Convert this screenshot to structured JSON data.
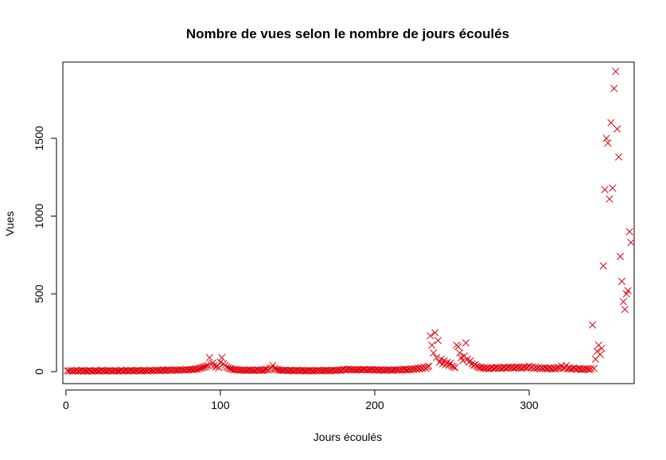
{
  "chart_data": {
    "type": "scatter",
    "title": "Nombre de vues selon le nombre de jours écoulés",
    "xlabel": "Jours écoulés",
    "ylabel": "Vues",
    "xlim": [
      -2,
      368
    ],
    "ylim": [
      -77,
      1990
    ],
    "xticks": [
      0,
      100,
      200,
      300
    ],
    "yticks": [
      0,
      500,
      1000,
      1500
    ],
    "marker": "x",
    "color": "#E0000A",
    "grid": false,
    "legend": "none",
    "points": [
      [
        1,
        5
      ],
      [
        2,
        3
      ],
      [
        3,
        8
      ],
      [
        4,
        2
      ],
      [
        5,
        6
      ],
      [
        6,
        4
      ],
      [
        7,
        9
      ],
      [
        8,
        3
      ],
      [
        9,
        5
      ],
      [
        10,
        7
      ],
      [
        11,
        2
      ],
      [
        12,
        6
      ],
      [
        13,
        4
      ],
      [
        14,
        3
      ],
      [
        15,
        8
      ],
      [
        16,
        5
      ],
      [
        17,
        2
      ],
      [
        18,
        6
      ],
      [
        19,
        4
      ],
      [
        20,
        7
      ],
      [
        21,
        3
      ],
      [
        22,
        5
      ],
      [
        23,
        9
      ],
      [
        24,
        4
      ],
      [
        25,
        6
      ],
      [
        26,
        3
      ],
      [
        27,
        5
      ],
      [
        28,
        8
      ],
      [
        29,
        4
      ],
      [
        30,
        6
      ],
      [
        31,
        3
      ],
      [
        32,
        7
      ],
      [
        33,
        5
      ],
      [
        34,
        4
      ],
      [
        35,
        6
      ],
      [
        36,
        9
      ],
      [
        37,
        3
      ],
      [
        38,
        5
      ],
      [
        39,
        7
      ],
      [
        40,
        4
      ],
      [
        41,
        6
      ],
      [
        42,
        8
      ],
      [
        43,
        5
      ],
      [
        44,
        3
      ],
      [
        45,
        7
      ],
      [
        46,
        5
      ],
      [
        47,
        9
      ],
      [
        48,
        4
      ],
      [
        49,
        6
      ],
      [
        50,
        8
      ],
      [
        51,
        5
      ],
      [
        52,
        7
      ],
      [
        53,
        4
      ],
      [
        54,
        9
      ],
      [
        55,
        6
      ],
      [
        56,
        8
      ],
      [
        57,
        5
      ],
      [
        58,
        10
      ],
      [
        59,
        7
      ],
      [
        60,
        9
      ],
      [
        61,
        6
      ],
      [
        62,
        8
      ],
      [
        63,
        11
      ],
      [
        64,
        7
      ],
      [
        65,
        9
      ],
      [
        66,
        12
      ],
      [
        67,
        8
      ],
      [
        68,
        10
      ],
      [
        69,
        7
      ],
      [
        70,
        12
      ],
      [
        71,
        9
      ],
      [
        72,
        11
      ],
      [
        73,
        8
      ],
      [
        74,
        13
      ],
      [
        75,
        10
      ],
      [
        76,
        12
      ],
      [
        77,
        9
      ],
      [
        78,
        14
      ],
      [
        79,
        11
      ],
      [
        80,
        13
      ],
      [
        81,
        15
      ],
      [
        82,
        12
      ],
      [
        83,
        14
      ],
      [
        84,
        18
      ],
      [
        85,
        15
      ],
      [
        86,
        20
      ],
      [
        87,
        22
      ],
      [
        88,
        25
      ],
      [
        89,
        28
      ],
      [
        90,
        30
      ],
      [
        91,
        35
      ],
      [
        92,
        40
      ],
      [
        93,
        90
      ],
      [
        94,
        45
      ],
      [
        95,
        55
      ],
      [
        96,
        40
      ],
      [
        97,
        30
      ],
      [
        98,
        35
      ],
      [
        99,
        25
      ],
      [
        100,
        60
      ],
      [
        101,
        90
      ],
      [
        102,
        50
      ],
      [
        103,
        40
      ],
      [
        104,
        30
      ],
      [
        105,
        25
      ],
      [
        106,
        20
      ],
      [
        107,
        18
      ],
      [
        108,
        15
      ],
      [
        109,
        12
      ],
      [
        110,
        14
      ],
      [
        111,
        10
      ],
      [
        112,
        12
      ],
      [
        113,
        9
      ],
      [
        114,
        11
      ],
      [
        115,
        8
      ],
      [
        116,
        10
      ],
      [
        117,
        7
      ],
      [
        118,
        9
      ],
      [
        119,
        11
      ],
      [
        120,
        8
      ],
      [
        121,
        10
      ],
      [
        122,
        7
      ],
      [
        123,
        9
      ],
      [
        124,
        12
      ],
      [
        125,
        8
      ],
      [
        126,
        10
      ],
      [
        127,
        7
      ],
      [
        128,
        9
      ],
      [
        129,
        12
      ],
      [
        130,
        15
      ],
      [
        131,
        10
      ],
      [
        132,
        18
      ],
      [
        133,
        25
      ],
      [
        134,
        40
      ],
      [
        135,
        20
      ],
      [
        136,
        15
      ],
      [
        137,
        12
      ],
      [
        138,
        10
      ],
      [
        139,
        8
      ],
      [
        140,
        9
      ],
      [
        141,
        7
      ],
      [
        142,
        10
      ],
      [
        143,
        8
      ],
      [
        144,
        6
      ],
      [
        145,
        9
      ],
      [
        146,
        7
      ],
      [
        147,
        5
      ],
      [
        148,
        8
      ],
      [
        149,
        6
      ],
      [
        150,
        9
      ],
      [
        151,
        7
      ],
      [
        152,
        5
      ],
      [
        153,
        8
      ],
      [
        154,
        6
      ],
      [
        155,
        4
      ],
      [
        156,
        7
      ],
      [
        157,
        5
      ],
      [
        158,
        8
      ],
      [
        159,
        6
      ],
      [
        160,
        4
      ],
      [
        161,
        7
      ],
      [
        162,
        5
      ],
      [
        163,
        9
      ],
      [
        164,
        6
      ],
      [
        165,
        8
      ],
      [
        166,
        5
      ],
      [
        167,
        7
      ],
      [
        168,
        9
      ],
      [
        169,
        6
      ],
      [
        170,
        8
      ],
      [
        171,
        5
      ],
      [
        172,
        7
      ],
      [
        173,
        10
      ],
      [
        174,
        6
      ],
      [
        175,
        9
      ],
      [
        176,
        7
      ],
      [
        177,
        11
      ],
      [
        178,
        8
      ],
      [
        179,
        12
      ],
      [
        180,
        15
      ],
      [
        181,
        10
      ],
      [
        182,
        13
      ],
      [
        183,
        16
      ],
      [
        184,
        12
      ],
      [
        185,
        14
      ],
      [
        186,
        11
      ],
      [
        187,
        13
      ],
      [
        188,
        10
      ],
      [
        189,
        12
      ],
      [
        190,
        14
      ],
      [
        191,
        11
      ],
      [
        192,
        13
      ],
      [
        193,
        15
      ],
      [
        194,
        12
      ],
      [
        195,
        10
      ],
      [
        196,
        13
      ],
      [
        197,
        11
      ],
      [
        198,
        14
      ],
      [
        199,
        12
      ],
      [
        200,
        10
      ],
      [
        201,
        13
      ],
      [
        202,
        11
      ],
      [
        203,
        9
      ],
      [
        204,
        12
      ],
      [
        205,
        10
      ],
      [
        206,
        8
      ],
      [
        207,
        11
      ],
      [
        208,
        9
      ],
      [
        209,
        12
      ],
      [
        210,
        10
      ],
      [
        211,
        8
      ],
      [
        212,
        11
      ],
      [
        213,
        13
      ],
      [
        214,
        10
      ],
      [
        215,
        12
      ],
      [
        216,
        9
      ],
      [
        217,
        14
      ],
      [
        218,
        11
      ],
      [
        219,
        16
      ],
      [
        220,
        13
      ],
      [
        221,
        10
      ],
      [
        222,
        15
      ],
      [
        223,
        12
      ],
      [
        224,
        18
      ],
      [
        225,
        14
      ],
      [
        226,
        20
      ],
      [
        227,
        16
      ],
      [
        228,
        22
      ],
      [
        229,
        18
      ],
      [
        230,
        25
      ],
      [
        231,
        20
      ],
      [
        232,
        28
      ],
      [
        233,
        22
      ],
      [
        234,
        30
      ],
      [
        235,
        35
      ],
      [
        236,
        230
      ],
      [
        237,
        170
      ],
      [
        238,
        120
      ],
      [
        239,
        250
      ],
      [
        240,
        90
      ],
      [
        241,
        200
      ],
      [
        242,
        60
      ],
      [
        243,
        80
      ],
      [
        244,
        50
      ],
      [
        245,
        70
      ],
      [
        246,
        45
      ],
      [
        247,
        60
      ],
      [
        248,
        40
      ],
      [
        249,
        55
      ],
      [
        250,
        35
      ],
      [
        251,
        30
      ],
      [
        252,
        25
      ],
      [
        253,
        170
      ],
      [
        254,
        160
      ],
      [
        255,
        120
      ],
      [
        256,
        90
      ],
      [
        257,
        70
      ],
      [
        258,
        100
      ],
      [
        259,
        185
      ],
      [
        260,
        80
      ],
      [
        261,
        60
      ],
      [
        262,
        70
      ],
      [
        263,
        50
      ],
      [
        264,
        40
      ],
      [
        265,
        45
      ],
      [
        266,
        35
      ],
      [
        267,
        30
      ],
      [
        268,
        25
      ],
      [
        269,
        28
      ],
      [
        270,
        22
      ],
      [
        271,
        25
      ],
      [
        272,
        20
      ],
      [
        273,
        24
      ],
      [
        274,
        18
      ],
      [
        275,
        22
      ],
      [
        276,
        26
      ],
      [
        277,
        20
      ],
      [
        278,
        24
      ],
      [
        279,
        28
      ],
      [
        280,
        22
      ],
      [
        281,
        26
      ],
      [
        282,
        20
      ],
      [
        283,
        24
      ],
      [
        284,
        28
      ],
      [
        285,
        22
      ],
      [
        286,
        26
      ],
      [
        287,
        30
      ],
      [
        288,
        24
      ],
      [
        289,
        28
      ],
      [
        290,
        22
      ],
      [
        291,
        26
      ],
      [
        292,
        30
      ],
      [
        293,
        24
      ],
      [
        294,
        28
      ],
      [
        295,
        22
      ],
      [
        296,
        26
      ],
      [
        297,
        30
      ],
      [
        298,
        24
      ],
      [
        299,
        28
      ],
      [
        300,
        35
      ],
      [
        301,
        25
      ],
      [
        302,
        30
      ],
      [
        303,
        20
      ],
      [
        304,
        28
      ],
      [
        305,
        22
      ],
      [
        306,
        26
      ],
      [
        307,
        18
      ],
      [
        308,
        24
      ],
      [
        309,
        20
      ],
      [
        310,
        26
      ],
      [
        311,
        22
      ],
      [
        312,
        18
      ],
      [
        313,
        24
      ],
      [
        314,
        20
      ],
      [
        315,
        16
      ],
      [
        316,
        22
      ],
      [
        317,
        18
      ],
      [
        318,
        24
      ],
      [
        319,
        28
      ],
      [
        320,
        22
      ],
      [
        321,
        35
      ],
      [
        322,
        20
      ],
      [
        323,
        25
      ],
      [
        324,
        40
      ],
      [
        325,
        18
      ],
      [
        326,
        22
      ],
      [
        327,
        16
      ],
      [
        328,
        20
      ],
      [
        329,
        24
      ],
      [
        330,
        18
      ],
      [
        331,
        14
      ],
      [
        332,
        20
      ],
      [
        333,
        16
      ],
      [
        334,
        12
      ],
      [
        335,
        18
      ],
      [
        336,
        14
      ],
      [
        337,
        20
      ],
      [
        338,
        16
      ],
      [
        339,
        12
      ],
      [
        340,
        18
      ],
      [
        341,
        300
      ],
      [
        342,
        20
      ],
      [
        343,
        80
      ],
      [
        344,
        130
      ],
      [
        345,
        170
      ],
      [
        346,
        110
      ],
      [
        347,
        150
      ],
      [
        348,
        680
      ],
      [
        349,
        1170
      ],
      [
        350,
        1500
      ],
      [
        351,
        1470
      ],
      [
        352,
        1110
      ],
      [
        353,
        1600
      ],
      [
        354,
        1180
      ],
      [
        355,
        1820
      ],
      [
        356,
        1930
      ],
      [
        357,
        1560
      ],
      [
        358,
        1380
      ],
      [
        359,
        740
      ],
      [
        360,
        580
      ],
      [
        361,
        450
      ],
      [
        362,
        400
      ],
      [
        363,
        500
      ],
      [
        364,
        520
      ],
      [
        365,
        900
      ],
      [
        366,
        830
      ]
    ]
  }
}
